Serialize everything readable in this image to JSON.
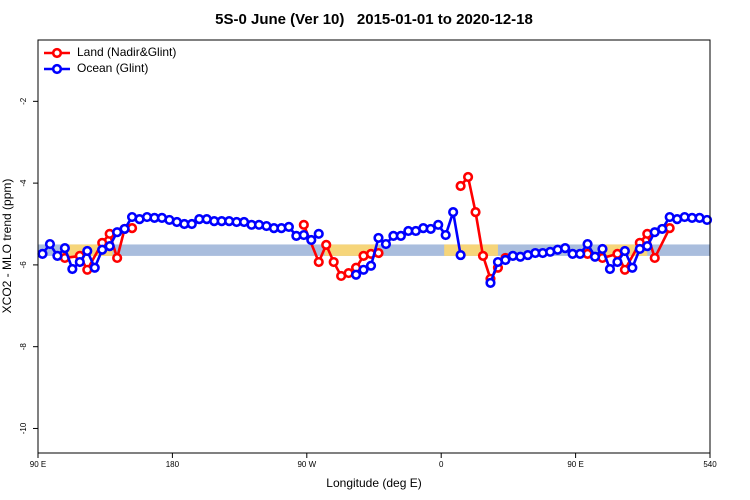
{
  "chart_data": {
    "type": "line",
    "title": "5S-0 June (Ver 10)   2015-01-01 to 2020-12-18",
    "xlabel": "Longitude (deg E)",
    "ylabel": "XCO2 - MLO trend (ppm)",
    "xlim": [
      90,
      540
    ],
    "ylim": [
      -10.6,
      -0.5
    ],
    "xticks": [
      {
        "value": 90,
        "label": "90 E"
      },
      180,
      {
        "value": 270,
        "label": "90 W"
      },
      {
        "value": 360,
        "label": "0"
      },
      {
        "value": 450,
        "label": "90 E"
      },
      540
    ],
    "yticks": [
      -10,
      -8,
      -6,
      -4,
      -2
    ],
    "legend": "top-left",
    "bands": [
      {
        "color": "#a9bddd",
        "range": [
          -5.78,
          -5.5
        ]
      },
      {
        "color": "#f6d57a",
        "range": [
          -5.78,
          -5.5
        ],
        "xranges": [
          [
            105,
            140
          ],
          [
            282,
            318
          ],
          [
            362,
            398
          ],
          [
            468,
            498
          ]
        ]
      }
    ],
    "series": [
      {
        "name": "Land (Nadir&Glint)",
        "color": "#ff0000",
        "x": [
          108,
          118,
          123,
          133,
          138,
          143,
          148,
          153,
          158,
          268,
          278,
          283,
          288,
          293,
          298,
          303,
          308,
          313,
          318,
          323,
          373,
          378,
          383,
          388,
          393,
          398,
          403,
          408,
          458,
          468,
          478,
          483,
          493,
          498,
          503,
          513
        ],
        "values": [
          -5.83,
          -5.78,
          -6.12,
          -5.46,
          -5.24,
          -5.83,
          -5.12,
          -5.1,
          null,
          -5.02,
          -5.93,
          -5.51,
          -5.93,
          -6.27,
          -6.2,
          -6.07,
          -5.78,
          -5.73,
          -5.71,
          null,
          -4.07,
          -3.85,
          -4.71,
          -5.78,
          -6.34,
          -6.07,
          -5.83,
          null,
          -5.73,
          -5.83,
          -5.73,
          -6.12,
          -5.46,
          -5.24,
          -5.83,
          -5.1
        ]
      },
      {
        "name": "Ocean (Glint)",
        "color": "#0000ff",
        "x": [
          93,
          98,
          103,
          108,
          113,
          118,
          123,
          128,
          133,
          138,
          143,
          148,
          153,
          158,
          163,
          168,
          173,
          178,
          183,
          188,
          193,
          198,
          203,
          208,
          213,
          218,
          223,
          228,
          233,
          238,
          243,
          248,
          253,
          258,
          263,
          268,
          273,
          278,
          288,
          303,
          308,
          313,
          318,
          323,
          328,
          333,
          338,
          343,
          348,
          353,
          358,
          363,
          368,
          373,
          378,
          393,
          398,
          403,
          408,
          413,
          418,
          423,
          428,
          433,
          438,
          443,
          448,
          453,
          458,
          463,
          468,
          473,
          478,
          483,
          488,
          493,
          498,
          503,
          508,
          513,
          518,
          523,
          528,
          533,
          538
        ],
        "values": [
          -5.73,
          -5.49,
          -5.78,
          -5.59,
          -6.1,
          -5.93,
          -5.66,
          -6.07,
          -5.63,
          -5.54,
          -5.2,
          -5.12,
          -4.83,
          -4.88,
          -4.83,
          -4.85,
          -4.85,
          -4.9,
          -4.95,
          -5.0,
          -5.0,
          -4.88,
          -4.88,
          -4.93,
          -4.93,
          -4.93,
          -4.95,
          -4.95,
          -5.02,
          -5.02,
          -5.05,
          -5.1,
          -5.1,
          -5.07,
          -5.29,
          -5.27,
          -5.39,
          -5.24,
          null,
          -6.24,
          -6.12,
          -6.02,
          -5.34,
          -5.49,
          -5.29,
          -5.29,
          -5.17,
          -5.17,
          -5.1,
          -5.12,
          -5.02,
          -5.27,
          -4.71,
          -5.76,
          null,
          -6.44,
          -5.93,
          -5.88,
          -5.78,
          -5.8,
          -5.76,
          -5.71,
          -5.71,
          -5.68,
          -5.63,
          -5.59,
          -5.73,
          -5.73,
          -5.49,
          -5.8,
          -5.61,
          -6.1,
          -5.93,
          -5.66,
          -6.07,
          -5.61,
          -5.54,
          -5.2,
          -5.12,
          -4.83,
          -4.88,
          -4.83,
          -4.85,
          -4.85,
          -4.9
        ]
      }
    ]
  }
}
